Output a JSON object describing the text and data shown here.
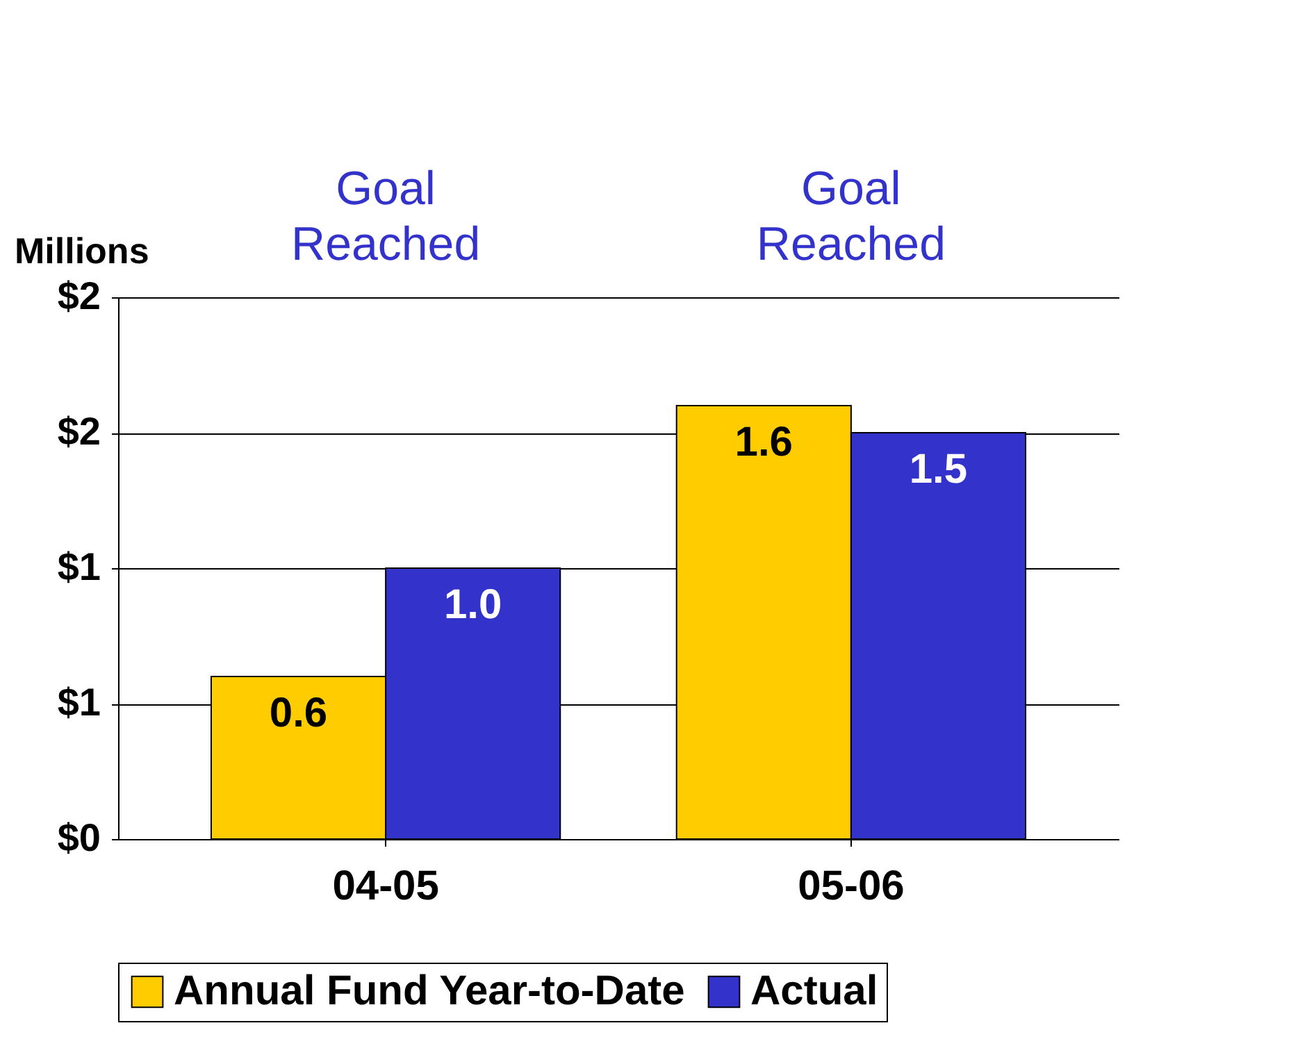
{
  "chart_data": {
    "type": "bar",
    "ylabel": "Millions",
    "categories": [
      "04-05",
      "05-06"
    ],
    "series": [
      {
        "name": "Annual Fund Year-to-Date",
        "color": "#ffcc00",
        "values": [
          0.6,
          1.6
        ],
        "value_labels": [
          "0.6",
          "1.6"
        ]
      },
      {
        "name": "Actual",
        "color": "#3333cc",
        "values": [
          1.0,
          1.5
        ],
        "value_labels": [
          "1.0",
          "1.5"
        ]
      }
    ],
    "ylim": [
      0,
      2
    ],
    "yticks": [
      {
        "value": 0,
        "label": "$0"
      },
      {
        "value": 0.5,
        "label": "$1"
      },
      {
        "value": 1,
        "label": "$1"
      },
      {
        "value": 1.5,
        "label": "$2"
      },
      {
        "value": 2,
        "label": "$2"
      }
    ],
    "grid": "y",
    "legend": "bottom",
    "annotations": [
      "Goal Reached",
      "Goal Reached"
    ]
  }
}
